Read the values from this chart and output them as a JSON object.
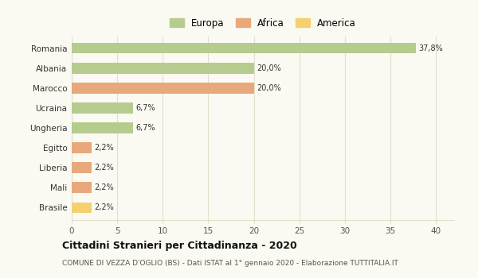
{
  "categories": [
    "Romania",
    "Albania",
    "Marocco",
    "Ucraina",
    "Ungheria",
    "Egitto",
    "Liberia",
    "Mali",
    "Brasile"
  ],
  "values": [
    37.8,
    20.0,
    20.0,
    6.7,
    6.7,
    2.2,
    2.2,
    2.2,
    2.2
  ],
  "labels": [
    "37,8%",
    "20,0%",
    "20,0%",
    "6,7%",
    "6,7%",
    "2,2%",
    "2,2%",
    "2,2%",
    "2,2%"
  ],
  "colors": [
    "#b5cc8e",
    "#b5cc8e",
    "#e8a87c",
    "#b5cc8e",
    "#b5cc8e",
    "#e8a87c",
    "#e8a87c",
    "#e8a87c",
    "#f5d06e"
  ],
  "legend_labels": [
    "Europa",
    "Africa",
    "America"
  ],
  "legend_colors": [
    "#b5cc8e",
    "#e8a87c",
    "#f5d06e"
  ],
  "xlim": [
    0,
    42
  ],
  "xticks": [
    0,
    5,
    10,
    15,
    20,
    25,
    30,
    35,
    40
  ],
  "title": "Cittadini Stranieri per Cittadinanza - 2020",
  "subtitle": "COMUNE DI VEZZA D'OGLIO (BS) - Dati ISTAT al 1° gennaio 2020 - Elaborazione TUTTITALIA.IT",
  "background_color": "#fafaf2",
  "grid_color": "#e0e0cc"
}
